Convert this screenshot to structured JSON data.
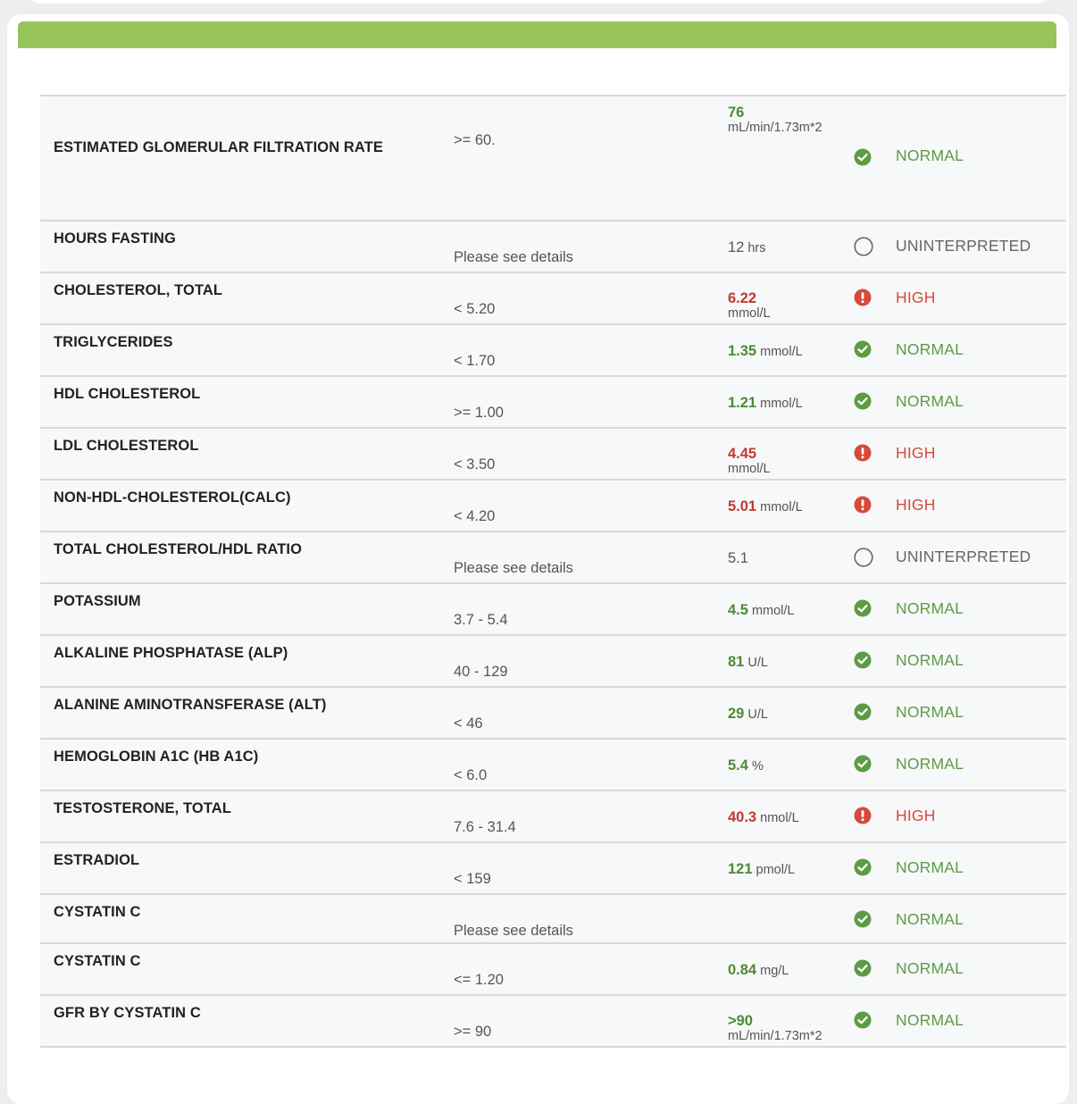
{
  "colors": {
    "header_bar": "#97c45a",
    "normal": "#5c9c42",
    "high": "#d64a3a",
    "neutral": "#666666"
  },
  "results": [
    {
      "test": "ESTIMATED GLOMERULAR FILTRATION RATE",
      "range": ">= 60.",
      "value": "76",
      "unit": "mL/min/1.73m*2",
      "status": "NORMAL",
      "kind": "normal",
      "icon": "check-circle-icon"
    },
    {
      "test": "HOURS FASTING",
      "range": "Please see details",
      "value": "12",
      "unit": "hrs",
      "status": "UNINTERPRETED",
      "kind": "unint",
      "icon": "empty-circle-icon"
    },
    {
      "test": "CHOLESTEROL, TOTAL",
      "range": "< 5.20",
      "value": "6.22",
      "unit": "mmol/L",
      "status": "HIGH",
      "kind": "high",
      "icon": "alert-circle-icon"
    },
    {
      "test": "TRIGLYCERIDES",
      "range": "< 1.70",
      "value": "1.35",
      "unit": "mmol/L",
      "status": "NORMAL",
      "kind": "normal",
      "icon": "check-circle-icon"
    },
    {
      "test": "HDL CHOLESTEROL",
      "range": ">= 1.00",
      "value": "1.21",
      "unit": "mmol/L",
      "status": "NORMAL",
      "kind": "normal",
      "icon": "check-circle-icon"
    },
    {
      "test": "LDL CHOLESTEROL",
      "range": "< 3.50",
      "value": "4.45",
      "unit": "mmol/L",
      "status": "HIGH",
      "kind": "high",
      "icon": "alert-circle-icon"
    },
    {
      "test": "NON-HDL-CHOLESTEROL(CALC)",
      "range": "< 4.20",
      "value": "5.01",
      "unit": "mmol/L",
      "status": "HIGH",
      "kind": "high",
      "icon": "alert-circle-icon"
    },
    {
      "test": "TOTAL CHOLESTEROL/HDL RATIO",
      "range": "Please see details",
      "value": "5.1",
      "unit": "",
      "status": "UNINTERPRETED",
      "kind": "unint",
      "icon": "empty-circle-icon"
    },
    {
      "test": "POTASSIUM",
      "range": "3.7 - 5.4",
      "value": "4.5",
      "unit": "mmol/L",
      "status": "NORMAL",
      "kind": "normal",
      "icon": "check-circle-icon"
    },
    {
      "test": "ALKALINE PHOSPHATASE (ALP)",
      "range": "40 - 129",
      "value": "81",
      "unit": "U/L",
      "status": "NORMAL",
      "kind": "normal",
      "icon": "check-circle-icon"
    },
    {
      "test": "ALANINE AMINOTRANSFERASE (ALT)",
      "range": "< 46",
      "value": "29",
      "unit": "U/L",
      "status": "NORMAL",
      "kind": "normal",
      "icon": "check-circle-icon"
    },
    {
      "test": "HEMOGLOBIN A1C (HB A1C)",
      "range": "< 6.0",
      "value": "5.4",
      "unit": "%",
      "status": "NORMAL",
      "kind": "normal",
      "icon": "check-circle-icon"
    },
    {
      "test": "TESTOSTERONE, TOTAL",
      "range": "7.6 - 31.4",
      "value": "40.3",
      "unit": "nmol/L",
      "status": "HIGH",
      "kind": "high",
      "icon": "alert-circle-icon"
    },
    {
      "test": "ESTRADIOL",
      "range": "< 159",
      "value": "121",
      "unit": "pmol/L",
      "status": "NORMAL",
      "kind": "normal",
      "icon": "check-circle-icon"
    },
    {
      "test": "CYSTATIN C",
      "range": "Please see details",
      "value": "",
      "unit": "",
      "status": "NORMAL",
      "kind": "normal",
      "icon": "check-circle-icon"
    },
    {
      "test": "CYSTATIN C",
      "range": "<= 1.20",
      "value": "0.84",
      "unit": "mg/L",
      "status": "NORMAL",
      "kind": "normal",
      "icon": "check-circle-icon"
    },
    {
      "test": "GFR BY CYSTATIN C",
      "range": ">= 90",
      "value": ">90",
      "unit": "mL/min/1.73m*2",
      "status": "NORMAL",
      "kind": "normal",
      "icon": "check-circle-icon"
    }
  ]
}
